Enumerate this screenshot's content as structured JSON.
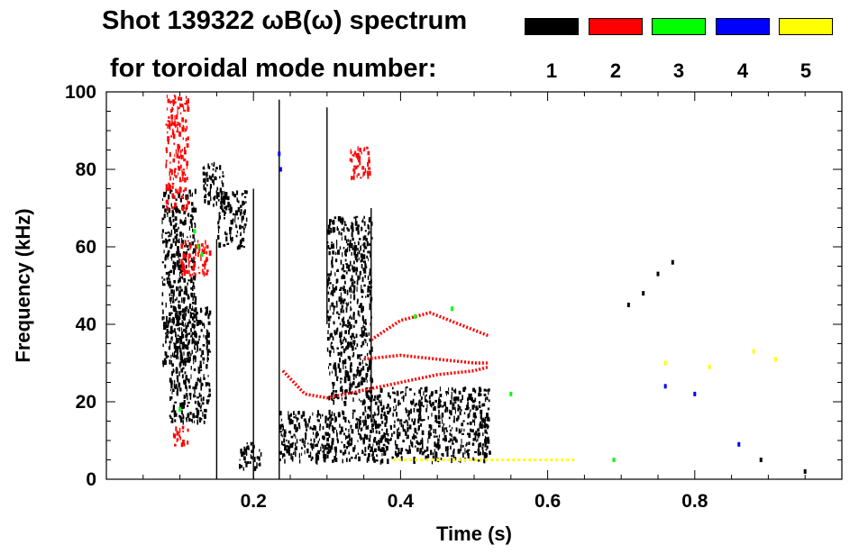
{
  "chart_data": {
    "type": "scatter",
    "title_line1": "Shot 139322 ωB(ω) spectrum",
    "title_line2": "for toroidal mode number:",
    "xlabel": "Time (s)",
    "ylabel": "Frequency (kHz)",
    "xlim": [
      0.0,
      1.0
    ],
    "ylim": [
      0,
      100
    ],
    "x_ticks": [
      0.2,
      0.4,
      0.6,
      0.8
    ],
    "x_tick_labels": [
      "0.2",
      "0.4",
      "0.6",
      "0.8"
    ],
    "y_ticks": [
      0,
      20,
      40,
      60,
      80,
      100
    ],
    "y_tick_labels": [
      "0",
      "20",
      "40",
      "60",
      "80",
      "100"
    ],
    "legend": [
      {
        "mode": "1",
        "color": "#000000"
      },
      {
        "mode": "2",
        "color": "#ff0000"
      },
      {
        "mode": "3",
        "color": "#00ff00"
      },
      {
        "mode": "4",
        "color": "#0000ff"
      },
      {
        "mode": "5",
        "color": "#ffff00"
      }
    ],
    "series": [
      {
        "name": "n=1",
        "color": "#000000",
        "regions": [
          {
            "t0": 0.075,
            "t1": 0.12,
            "f0": 30,
            "f1": 75
          },
          {
            "t0": 0.085,
            "t1": 0.14,
            "f0": 15,
            "f1": 45
          },
          {
            "t0": 0.13,
            "t1": 0.16,
            "f0": 70,
            "f1": 82
          },
          {
            "t0": 0.15,
            "t1": 0.19,
            "f0": 60,
            "f1": 75
          },
          {
            "t0": 0.18,
            "t1": 0.21,
            "f0": 3,
            "f1": 10
          },
          {
            "t0": 0.235,
            "t1": 0.52,
            "f0": 5,
            "f1": 18
          },
          {
            "t0": 0.3,
            "t1": 0.36,
            "f0": 20,
            "f1": 68
          },
          {
            "t0": 0.35,
            "t1": 0.52,
            "f0": 18,
            "f1": 24
          }
        ],
        "streaks": [
          {
            "t": 0.15,
            "f0": 0,
            "f1": 62
          },
          {
            "t": 0.2,
            "f0": 0,
            "f1": 75
          },
          {
            "t": 0.235,
            "f0": 0,
            "f1": 98
          },
          {
            "t": 0.3,
            "f0": 40,
            "f1": 96
          },
          {
            "t": 0.36,
            "f0": 15,
            "f1": 70
          }
        ],
        "points": [
          {
            "t": 0.71,
            "f": 45
          },
          {
            "t": 0.73,
            "f": 48
          },
          {
            "t": 0.75,
            "f": 53
          },
          {
            "t": 0.77,
            "f": 56
          },
          {
            "t": 0.89,
            "f": 5
          },
          {
            "t": 0.95,
            "f": 2
          }
        ]
      },
      {
        "name": "n=2",
        "color": "#ff0000",
        "regions": [
          {
            "t0": 0.08,
            "t1": 0.11,
            "f0": 70,
            "f1": 100
          },
          {
            "t0": 0.1,
            "t1": 0.14,
            "f0": 53,
            "f1": 62
          },
          {
            "t0": 0.33,
            "t1": 0.36,
            "f0": 78,
            "f1": 86
          },
          {
            "t0": 0.09,
            "t1": 0.11,
            "f0": 9,
            "f1": 14
          }
        ],
        "curves": [
          {
            "name": "lower",
            "t": [
              0.24,
              0.27,
              0.3,
              0.35,
              0.4,
              0.45,
              0.5,
              0.52
            ],
            "f": [
              28,
              22,
              21,
              23,
              25,
              27,
              28,
              29
            ]
          },
          {
            "name": "middle",
            "t": [
              0.35,
              0.4,
              0.45,
              0.5,
              0.52
            ],
            "f": [
              31,
              32,
              31,
              30,
              30
            ]
          },
          {
            "name": "upper",
            "t": [
              0.36,
              0.4,
              0.44,
              0.48,
              0.52
            ],
            "f": [
              36,
              41,
              43,
              40,
              37
            ]
          }
        ]
      },
      {
        "name": "n=3",
        "color": "#00ff00",
        "points": [
          {
            "t": 0.12,
            "f": 64
          },
          {
            "t": 0.125,
            "f": 60
          },
          {
            "t": 0.13,
            "f": 58
          },
          {
            "t": 0.1,
            "f": 18
          },
          {
            "t": 0.42,
            "f": 42
          },
          {
            "t": 0.47,
            "f": 44
          },
          {
            "t": 0.55,
            "f": 22
          },
          {
            "t": 0.69,
            "f": 5
          }
        ]
      },
      {
        "name": "n=4",
        "color": "#0000ff",
        "points": [
          {
            "t": 0.235,
            "f": 84
          },
          {
            "t": 0.237,
            "f": 80
          },
          {
            "t": 0.76,
            "f": 24
          },
          {
            "t": 0.8,
            "f": 22
          },
          {
            "t": 0.86,
            "f": 9
          }
        ]
      },
      {
        "name": "n=5",
        "color": "#ffff00",
        "band": {
          "t0": 0.39,
          "t1": 0.64,
          "f": 5
        },
        "points": [
          {
            "t": 0.76,
            "f": 30
          },
          {
            "t": 0.82,
            "f": 29
          },
          {
            "t": 0.88,
            "f": 33
          },
          {
            "t": 0.91,
            "f": 31
          }
        ]
      }
    ]
  }
}
